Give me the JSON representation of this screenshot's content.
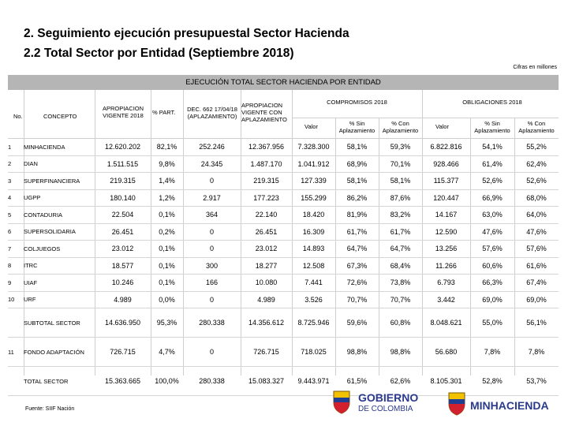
{
  "title1": "2. Seguimiento ejecución presupuestal Sector Hacienda",
  "title2": "2.2 Total Sector por Entidad (Septiembre 2018)",
  "note": "Cifras en millones",
  "banner": "EJECUCIÓN TOTAL SECTOR HACIENDA POR ENTIDAD",
  "headers": {
    "no": "No.",
    "concepto": "CONCEPTO",
    "apropiacion": "APROPIACION VIGENTE 2018",
    "part": "% PART.",
    "dec": "DEC. 662 17/04/18 (APLAZAMIENTO)",
    "aprop_aplaz": "APROPIACION VIGENTE CON APLAZAMIENTO",
    "compromisos": "COMPROMISOS 2018",
    "obligaciones": "OBLIGACIONES 2018",
    "valor": "Valor",
    "sin_aplaz": "% Sin Aplazamiento",
    "con_aplaz": "% Con Aplazamiento"
  },
  "rows": [
    {
      "no": "1",
      "name": "MINHACIENDA",
      "aprop": "12.620.202",
      "part": "82,1%",
      "dec": "252.246",
      "aprop_aplaz": "12.367.956",
      "c_val": "7.328.300",
      "c_sin": "58,1%",
      "c_con": "59,3%",
      "o_val": "6.822.816",
      "o_sin": "54,1%",
      "o_con": "55,2%"
    },
    {
      "no": "2",
      "name": "DIAN",
      "aprop": "1.511.515",
      "part": "9,8%",
      "dec": "24.345",
      "aprop_aplaz": "1.487.170",
      "c_val": "1.041.912",
      "c_sin": "68,9%",
      "c_con": "70,1%",
      "o_val": "928.466",
      "o_sin": "61,4%",
      "o_con": "62,4%"
    },
    {
      "no": "3",
      "name": "SUPERFINANCIERA",
      "aprop": "219.315",
      "part": "1,4%",
      "dec": "0",
      "aprop_aplaz": "219.315",
      "c_val": "127.339",
      "c_sin": "58,1%",
      "c_con": "58,1%",
      "o_val": "115.377",
      "o_sin": "52,6%",
      "o_con": "52,6%"
    },
    {
      "no": "4",
      "name": "UGPP",
      "aprop": "180.140",
      "part": "1,2%",
      "dec": "2.917",
      "aprop_aplaz": "177.223",
      "c_val": "155.299",
      "c_sin": "86,2%",
      "c_con": "87,6%",
      "o_val": "120.447",
      "o_sin": "66,9%",
      "o_con": "68,0%"
    },
    {
      "no": "5",
      "name": "CONTADURIA",
      "aprop": "22.504",
      "part": "0,1%",
      "dec": "364",
      "aprop_aplaz": "22.140",
      "c_val": "18.420",
      "c_sin": "81,9%",
      "c_con": "83,2%",
      "o_val": "14.167",
      "o_sin": "63,0%",
      "o_con": "64,0%"
    },
    {
      "no": "6",
      "name": "SUPERSOLIDARIA",
      "aprop": "26.451",
      "part": "0,2%",
      "dec": "0",
      "aprop_aplaz": "26.451",
      "c_val": "16.309",
      "c_sin": "61,7%",
      "c_con": "61,7%",
      "o_val": "12.590",
      "o_sin": "47,6%",
      "o_con": "47,6%"
    },
    {
      "no": "7",
      "name": "COLJUEGOS",
      "aprop": "23.012",
      "part": "0,1%",
      "dec": "0",
      "aprop_aplaz": "23.012",
      "c_val": "14.893",
      "c_sin": "64,7%",
      "c_con": "64,7%",
      "o_val": "13.256",
      "o_sin": "57,6%",
      "o_con": "57,6%"
    },
    {
      "no": "8",
      "name": "ITRC",
      "aprop": "18.577",
      "part": "0,1%",
      "dec": "300",
      "aprop_aplaz": "18.277",
      "c_val": "12.508",
      "c_sin": "67,3%",
      "c_con": "68,4%",
      "o_val": "11.266",
      "o_sin": "60,6%",
      "o_con": "61,6%"
    },
    {
      "no": "9",
      "name": "UIAF",
      "aprop": "10.246",
      "part": "0,1%",
      "dec": "166",
      "aprop_aplaz": "10.080",
      "c_val": "7.441",
      "c_sin": "72,6%",
      "c_con": "73,8%",
      "o_val": "6.793",
      "o_sin": "66,3%",
      "o_con": "67,4%"
    },
    {
      "no": "10",
      "name": "URF",
      "aprop": "4.989",
      "part": "0,0%",
      "dec": "0",
      "aprop_aplaz": "4.989",
      "c_val": "3.526",
      "c_sin": "70,7%",
      "c_con": "70,7%",
      "o_val": "3.442",
      "o_sin": "69,0%",
      "o_con": "69,0%"
    }
  ],
  "subtotal": {
    "no": "",
    "name": "SUBTOTAL SECTOR",
    "aprop": "14.636.950",
    "part": "95,3%",
    "dec": "280.338",
    "aprop_aplaz": "14.356.612",
    "c_val": "8.725.946",
    "c_sin": "59,6%",
    "c_con": "60,8%",
    "o_val": "8.048.621",
    "o_sin": "55,0%",
    "o_con": "56,1%"
  },
  "fondo": {
    "no": "11",
    "name": "FONDO ADAPTACIÓN",
    "aprop": "726.715",
    "part": "4,7%",
    "dec": "0",
    "aprop_aplaz": "726.715",
    "c_val": "718.025",
    "c_sin": "98,8%",
    "c_con": "98,8%",
    "o_val": "56.680",
    "o_sin": "7,8%",
    "o_con": "7,8%"
  },
  "total": {
    "no": "",
    "name": "TOTAL SECTOR",
    "aprop": "15.363.665",
    "part": "100,0%",
    "dec": "280.338",
    "aprop_aplaz": "15.083.327",
    "c_val": "9.443.971",
    "c_sin": "61,5%",
    "c_con": "62,6%",
    "o_val": "8.105.301",
    "o_sin": "52,8%",
    "o_con": "53,7%"
  },
  "source": "Fuente: SIIF Nación",
  "logo_gobierno": {
    "line1": "GOBIERNO",
    "line2": "DE COLOMBIA"
  },
  "logo_minhacienda": "MINHACIENDA",
  "colors": {
    "banner": "#b5b5b5",
    "brand_blue": "#2b3a8c",
    "flag_yellow": "#f2c100",
    "flag_blue": "#1f3f95",
    "flag_red": "#d3202f"
  }
}
